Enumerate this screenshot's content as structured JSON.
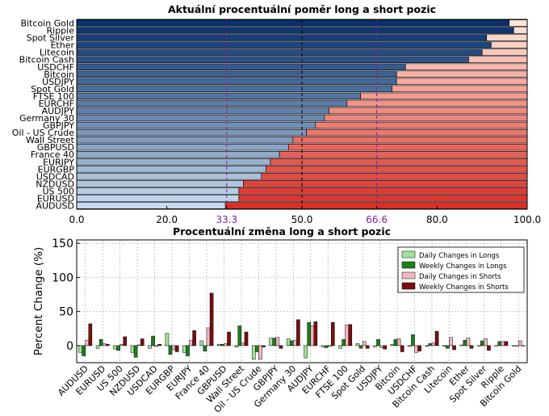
{
  "chart_data": [
    {
      "type": "bar",
      "orientation": "horizontal",
      "stacked": true,
      "title": "Aktuální procentuální poměr long a short pozic",
      "xlim": [
        0,
        100
      ],
      "xticks": [
        "0.0",
        "20.0",
        "33.3",
        "50.0",
        "66.6",
        "80.0",
        "100.0"
      ],
      "reference_lines": [
        {
          "x": 33.3,
          "color": "#7b1fa2",
          "style": "dashed"
        },
        {
          "x": 50.0,
          "color": "#000000",
          "style": "dashed"
        },
        {
          "x": 66.6,
          "color": "#7b1fa2",
          "style": "dashed"
        }
      ],
      "grid": true,
      "categories": [
        "Bitcoin Gold",
        "Ripple",
        "Spot Silver",
        "Ether",
        "Litecoin",
        "Bitcoin Cash",
        "USDCHF",
        "Bitcoin",
        "USDJPY",
        "Spot Gold",
        "FTSE 100",
        "EURCHF",
        "AUDJPY",
        "Germany 30",
        "GBPJPY",
        "Oil - US Crude",
        "Wall Street",
        "GBPUSD",
        "France 40",
        "EURJPY",
        "EURGBP",
        "USDCAD",
        "NZDUSD",
        "US 500",
        "EURUSD",
        "AUDUSD"
      ],
      "long_pct": [
        96,
        97,
        91,
        92,
        90,
        87,
        73,
        71,
        71,
        70,
        63,
        60,
        56,
        55,
        53,
        51,
        48,
        47,
        45,
        43,
        42,
        41,
        37,
        36,
        36,
        33
      ],
      "colors": {
        "long_dark": "#08306b",
        "long_light": "#c6dbef",
        "short_light": "#fee5d9",
        "short_dark": "#de2d26"
      }
    },
    {
      "type": "bar",
      "title": "Procentuální změna long a short pozic",
      "ylabel": "Percent Change (%)",
      "ylim": [
        -25,
        155
      ],
      "yticks": [
        "0",
        "50",
        "100",
        "150"
      ],
      "grid": true,
      "legend_position": "top-right",
      "categories": [
        "AUDUSD",
        "EURUSD",
        "US 500",
        "NZDUSD",
        "USDCAD",
        "EURGBP",
        "EURJPY",
        "France 40",
        "GBPUSD",
        "Wall Street",
        "Oil - US Crude",
        "GBPJPY",
        "Germany 30",
        "AUDJPY",
        "EURCHF",
        "FTSE 100",
        "Spot Gold",
        "USDJPY",
        "Bitcoin",
        "USDCHF",
        "Bitcoin Cash",
        "Litecoin",
        "Ether",
        "Spot Silver",
        "Ripple",
        "Bitcoin Gold"
      ],
      "series": [
        {
          "name": "Daily Changes in Longs",
          "color": "#a1e39b",
          "values": [
            -10,
            -4,
            -5,
            -10,
            -4,
            18,
            -10,
            7,
            2,
            -2,
            -20,
            11,
            10,
            -18,
            -2,
            -4,
            3,
            -2,
            2,
            -1,
            -1,
            -1,
            1,
            0,
            0,
            0
          ]
        },
        {
          "name": "Weekly Changes in Longs",
          "color": "#1b7f1b",
          "values": [
            -15,
            9,
            -7,
            -17,
            14,
            -13,
            -15,
            -8,
            2,
            29,
            -9,
            11,
            7,
            34,
            -3,
            9,
            -4,
            9,
            9,
            16,
            3,
            -4,
            8,
            7,
            6,
            0
          ]
        },
        {
          "name": "Daily Changes in Shorts",
          "color": "#f4b6c2",
          "values": [
            8,
            3,
            2,
            1,
            -1,
            -6,
            8,
            26,
            3,
            4,
            -20,
            12,
            8,
            29,
            -1,
            30,
            6,
            -3,
            10,
            -10,
            4,
            12,
            11,
            10,
            6,
            7
          ]
        },
        {
          "name": "Weekly Changes in Shorts",
          "color": "#7a0e0e",
          "values": [
            32,
            2,
            13,
            10,
            2,
            -9,
            22,
            77,
            20,
            20,
            -2,
            -4,
            38,
            35,
            34,
            31,
            -4,
            -5,
            -9,
            -8,
            21,
            -6,
            -4,
            -7,
            6,
            0
          ]
        }
      ]
    }
  ]
}
